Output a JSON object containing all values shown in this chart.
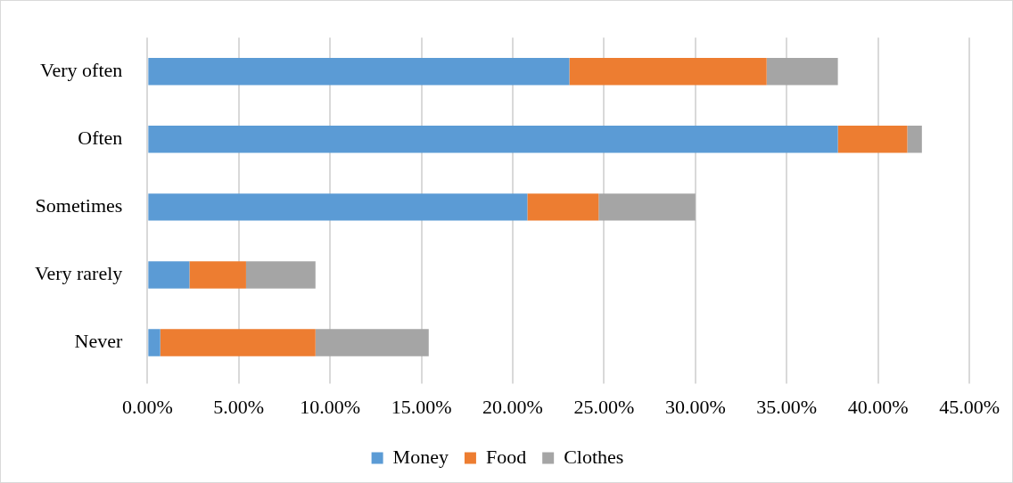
{
  "chart_data": {
    "type": "bar",
    "orientation": "horizontal",
    "stacked": true,
    "categories": [
      "Very often",
      "Often",
      "Sometimes",
      "Very rarely",
      "Never"
    ],
    "series": [
      {
        "name": "Money",
        "color": "#5b9bd5",
        "values": [
          23.1,
          37.8,
          20.8,
          2.3,
          0.7
        ]
      },
      {
        "name": "Food",
        "color": "#ed7d31",
        "values": [
          10.8,
          3.8,
          3.9,
          3.1,
          8.5
        ]
      },
      {
        "name": "Clothes",
        "color": "#a5a5a5",
        "values": [
          3.9,
          0.8,
          5.3,
          3.8,
          6.2
        ]
      }
    ],
    "xlim": [
      0,
      45
    ],
    "xticks": [
      {
        "value": 0,
        "label": "0.00%"
      },
      {
        "value": 5,
        "label": "5.00%"
      },
      {
        "value": 10,
        "label": "10.00%"
      },
      {
        "value": 15,
        "label": "15.00%"
      },
      {
        "value": 20,
        "label": "20.00%"
      },
      {
        "value": 25,
        "label": "25.00%"
      },
      {
        "value": 30,
        "label": "30.00%"
      },
      {
        "value": 35,
        "label": "35.00%"
      },
      {
        "value": 40,
        "label": "40.00%"
      },
      {
        "value": 45,
        "label": "45.00%"
      }
    ],
    "grid": "x",
    "legend": "bottom"
  }
}
